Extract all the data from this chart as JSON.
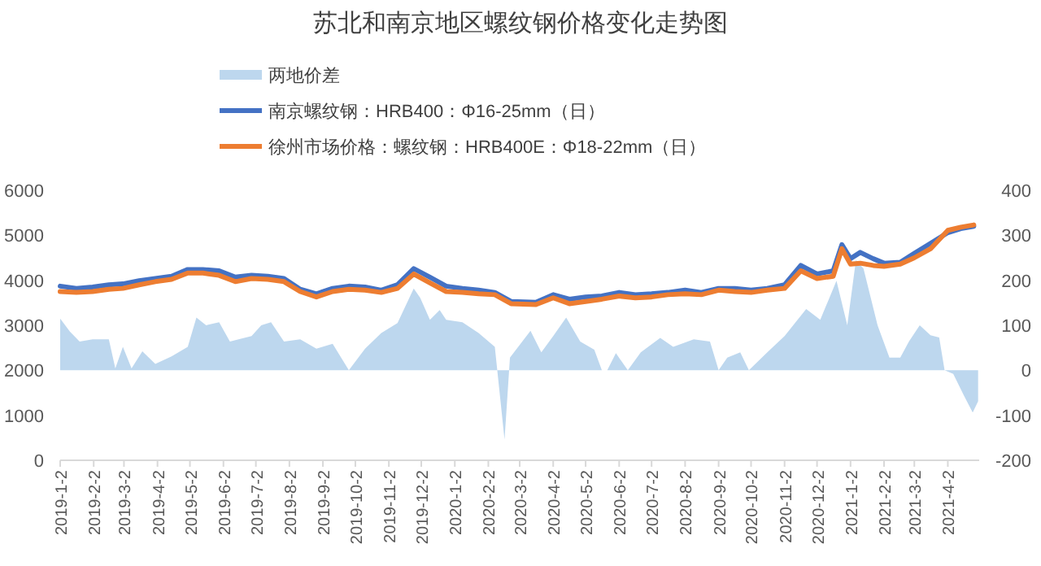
{
  "chart_data": {
    "type": "line",
    "title": "苏北和南京地区螺纹钢价格变化走势图",
    "legend": "top left",
    "xlim": [
      "2019-01-02",
      "2021-05-01"
    ],
    "ylim": [
      0,
      6000
    ],
    "yticks": [
      0,
      1000,
      2000,
      3000,
      4000,
      5000,
      6000
    ],
    "y2lim": [
      -200,
      400
    ],
    "y2ticks": [
      -200,
      -100,
      0,
      100,
      200,
      300,
      400
    ],
    "xticks": [
      {
        "value": "2019-01-02",
        "label": "2019-1-2"
      },
      {
        "value": "2019-02-02",
        "label": "2019-2-2"
      },
      {
        "value": "2019-03-02",
        "label": "2019-3-2"
      },
      {
        "value": "2019-04-02",
        "label": "2019-4-2"
      },
      {
        "value": "2019-05-02",
        "label": "2019-5-2"
      },
      {
        "value": "2019-06-02",
        "label": "2019-6-2"
      },
      {
        "value": "2019-07-02",
        "label": "2019-7-2"
      },
      {
        "value": "2019-08-02",
        "label": "2019-8-2"
      },
      {
        "value": "2019-09-02",
        "label": "2019-9-2"
      },
      {
        "value": "2019-10-02",
        "label": "2019-10-2"
      },
      {
        "value": "2019-11-02",
        "label": "2019-11-2"
      },
      {
        "value": "2019-12-02",
        "label": "2019-12-2"
      },
      {
        "value": "2020-01-02",
        "label": "2020-1-2"
      },
      {
        "value": "2020-02-02",
        "label": "2020-2-2"
      },
      {
        "value": "2020-03-02",
        "label": "2020-3-2"
      },
      {
        "value": "2020-04-02",
        "label": "2020-4-2"
      },
      {
        "value": "2020-05-02",
        "label": "2020-5-2"
      },
      {
        "value": "2020-06-02",
        "label": "2020-6-2"
      },
      {
        "value": "2020-07-02",
        "label": "2020-7-2"
      },
      {
        "value": "2020-08-02",
        "label": "2020-8-2"
      },
      {
        "value": "2020-09-02",
        "label": "2020-9-2"
      },
      {
        "value": "2020-10-02",
        "label": "2020-10-2"
      },
      {
        "value": "2020-11-02",
        "label": "2020-11-2"
      },
      {
        "value": "2020-12-02",
        "label": "2020-12-2"
      },
      {
        "value": "2021-01-02",
        "label": "2021-1-2"
      },
      {
        "value": "2021-02-02",
        "label": "2021-2-2"
      },
      {
        "value": "2021-03-02",
        "label": "2021-3-2"
      },
      {
        "value": "2021-04-02",
        "label": "2021-4-2"
      }
    ],
    "series": [
      {
        "name": "两地价差",
        "type": "area",
        "axis": "y2",
        "color": "#bdd7ee",
        "x": [
          "2019-01-02",
          "2019-01-11",
          "2019-01-20",
          "2019-02-01",
          "2019-02-16",
          "2019-02-22",
          "2019-03-01",
          "2019-03-09",
          "2019-03-19",
          "2019-03-31",
          "2019-04-15",
          "2019-04-30",
          "2019-05-08",
          "2019-05-17",
          "2019-05-29",
          "2019-06-08",
          "2019-06-16",
          "2019-06-28",
          "2019-07-07",
          "2019-07-16",
          "2019-07-28",
          "2019-08-12",
          "2019-08-27",
          "2019-09-11",
          "2019-09-26",
          "2019-10-11",
          "2019-10-26",
          "2019-11-10",
          "2019-11-25",
          "2019-12-01",
          "2019-12-10",
          "2019-12-19",
          "2019-12-25",
          "2020-01-09",
          "2020-01-24",
          "2020-02-08",
          "2020-02-17",
          "2020-02-22",
          "2020-03-12",
          "2020-03-22",
          "2020-04-02",
          "2020-04-14",
          "2020-04-27",
          "2020-05-10",
          "2020-05-17",
          "2020-05-22",
          "2020-05-30",
          "2020-06-10",
          "2020-06-22",
          "2020-07-10",
          "2020-07-22",
          "2020-08-10",
          "2020-08-25",
          "2020-09-02",
          "2020-09-10",
          "2020-09-22",
          "2020-09-30",
          "2020-10-17",
          "2020-11-02",
          "2020-11-14",
          "2020-11-22",
          "2020-12-05",
          "2020-12-20",
          "2020-12-30",
          "2021-01-07",
          "2021-01-14",
          "2021-01-27",
          "2021-02-07",
          "2021-02-17",
          "2021-02-25",
          "2021-03-07",
          "2021-03-17",
          "2021-03-25",
          "2021-03-30",
          "2021-04-07",
          "2021-04-17",
          "2021-04-25",
          "2021-04-30"
        ],
        "values": [
          115,
          86,
          64,
          69,
          69,
          4,
          52,
          4,
          42,
          14,
          31,
          52,
          117,
          100,
          107,
          64,
          69,
          76,
          100,
          107,
          64,
          69,
          48,
          59,
          0,
          48,
          83,
          105,
          182,
          161,
          112,
          134,
          112,
          107,
          83,
          52,
          -154,
          28,
          88,
          40,
          76,
          117,
          64,
          46,
          0,
          0,
          38,
          0,
          40,
          72,
          52,
          69,
          64,
          0,
          28,
          40,
          0,
          40,
          76,
          112,
          136,
          112,
          199,
          100,
          245,
          226,
          100,
          28,
          28,
          64,
          100,
          78,
          73,
          0,
          -8,
          -57,
          -94,
          -69
        ]
      },
      {
        "name": "南京螺纹钢：HRB400：Φ16-25mm（日）",
        "color": "#4472c4",
        "x": [
          "2019-01-02",
          "2019-01-17",
          "2019-02-01",
          "2019-02-16",
          "2019-03-01",
          "2019-03-16",
          "2019-03-31",
          "2019-04-15",
          "2019-04-30",
          "2019-05-14",
          "2019-05-29",
          "2019-06-13",
          "2019-06-28",
          "2019-07-13",
          "2019-07-28",
          "2019-08-12",
          "2019-08-27",
          "2019-09-11",
          "2019-09-26",
          "2019-10-11",
          "2019-10-26",
          "2019-11-10",
          "2019-11-25",
          "2019-12-10",
          "2019-12-25",
          "2020-01-09",
          "2020-01-24",
          "2020-02-08",
          "2020-02-23",
          "2020-03-17",
          "2020-04-02",
          "2020-04-17",
          "2020-05-02",
          "2020-05-17",
          "2020-06-02",
          "2020-06-17",
          "2020-07-02",
          "2020-07-17",
          "2020-08-02",
          "2020-08-17",
          "2020-09-02",
          "2020-09-17",
          "2020-10-02",
          "2020-10-17",
          "2020-11-02",
          "2020-11-17",
          "2020-12-02",
          "2020-12-17",
          "2020-12-25",
          "2021-01-02",
          "2021-01-11",
          "2021-01-23",
          "2021-02-02",
          "2021-02-17",
          "2021-03-02",
          "2021-03-17",
          "2021-04-02",
          "2021-04-14",
          "2021-04-26"
        ],
        "values": [
          3870,
          3820,
          3850,
          3900,
          3920,
          3990,
          4040,
          4090,
          4240,
          4240,
          4210,
          4070,
          4110,
          4090,
          4040,
          3800,
          3700,
          3820,
          3870,
          3850,
          3780,
          3900,
          4260,
          4070,
          3870,
          3820,
          3780,
          3730,
          3530,
          3510,
          3680,
          3580,
          3630,
          3650,
          3730,
          3680,
          3700,
          3730,
          3780,
          3730,
          3820,
          3820,
          3780,
          3820,
          3900,
          4330,
          4140,
          4210,
          4790,
          4480,
          4620,
          4480,
          4380,
          4400,
          4600,
          4820,
          5060,
          5150,
          5200
        ]
      },
      {
        "name": "徐州市场价格：螺纹钢：HRB400E：Φ18-22mm（日）",
        "color": "#ed7d31",
        "x": [
          "2019-01-02",
          "2019-01-17",
          "2019-02-01",
          "2019-02-16",
          "2019-03-01",
          "2019-03-16",
          "2019-03-31",
          "2019-04-15",
          "2019-04-30",
          "2019-05-14",
          "2019-05-29",
          "2019-06-13",
          "2019-06-28",
          "2019-07-13",
          "2019-07-28",
          "2019-08-12",
          "2019-08-27",
          "2019-09-11",
          "2019-09-26",
          "2019-10-11",
          "2019-10-26",
          "2019-11-10",
          "2019-11-25",
          "2019-12-10",
          "2019-12-25",
          "2020-01-09",
          "2020-01-24",
          "2020-02-08",
          "2020-02-23",
          "2020-03-17",
          "2020-04-02",
          "2020-04-17",
          "2020-05-02",
          "2020-05-17",
          "2020-06-02",
          "2020-06-17",
          "2020-07-02",
          "2020-07-17",
          "2020-08-02",
          "2020-08-17",
          "2020-09-02",
          "2020-09-17",
          "2020-10-02",
          "2020-10-17",
          "2020-11-02",
          "2020-11-17",
          "2020-12-02",
          "2020-12-17",
          "2020-12-25",
          "2021-01-02",
          "2021-01-11",
          "2021-01-23",
          "2021-02-02",
          "2021-02-17",
          "2021-03-02",
          "2021-03-17",
          "2021-04-02",
          "2021-04-14",
          "2021-04-26"
        ],
        "values": [
          3750,
          3730,
          3750,
          3800,
          3820,
          3900,
          3970,
          4020,
          4160,
          4160,
          4110,
          3970,
          4040,
          4020,
          3970,
          3750,
          3630,
          3750,
          3800,
          3780,
          3730,
          3820,
          4140,
          3940,
          3750,
          3730,
          3700,
          3680,
          3480,
          3460,
          3610,
          3480,
          3530,
          3580,
          3650,
          3610,
          3630,
          3680,
          3700,
          3680,
          3780,
          3750,
          3730,
          3780,
          3820,
          4210,
          4040,
          4090,
          4700,
          4360,
          4380,
          4330,
          4310,
          4360,
          4500,
          4700,
          5110,
          5180,
          5230
        ]
      }
    ]
  }
}
